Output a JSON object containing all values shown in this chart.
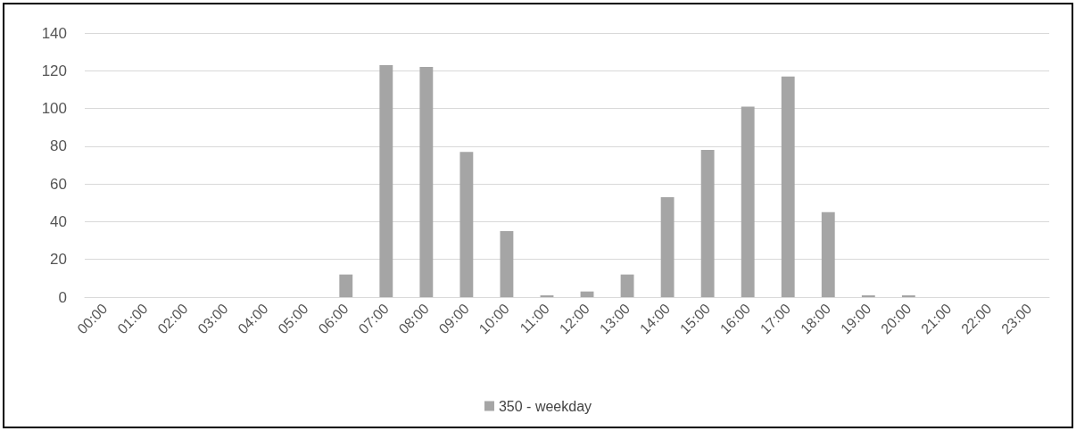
{
  "chart_data": {
    "type": "bar",
    "categories": [
      "00:00",
      "01:00",
      "02:00",
      "03:00",
      "04:00",
      "05:00",
      "06:00",
      "07:00",
      "08:00",
      "09:00",
      "10:00",
      "11:00",
      "12:00",
      "13:00",
      "14:00",
      "15:00",
      "16:00",
      "17:00",
      "18:00",
      "19:00",
      "20:00",
      "21:00",
      "22:00",
      "23:00"
    ],
    "series": [
      {
        "name": "350 - weekday",
        "color": "#a5a5a5",
        "values": [
          0,
          0,
          0,
          0,
          0,
          0,
          12,
          123,
          122,
          77,
          35,
          1,
          3,
          12,
          53,
          78,
          101,
          117,
          45,
          1,
          1,
          0,
          0,
          0
        ]
      }
    ],
    "ylim": [
      0,
      140
    ],
    "yticks": [
      0,
      20,
      40,
      60,
      80,
      100,
      120,
      140
    ],
    "grid": "y",
    "legend": "bottom"
  }
}
